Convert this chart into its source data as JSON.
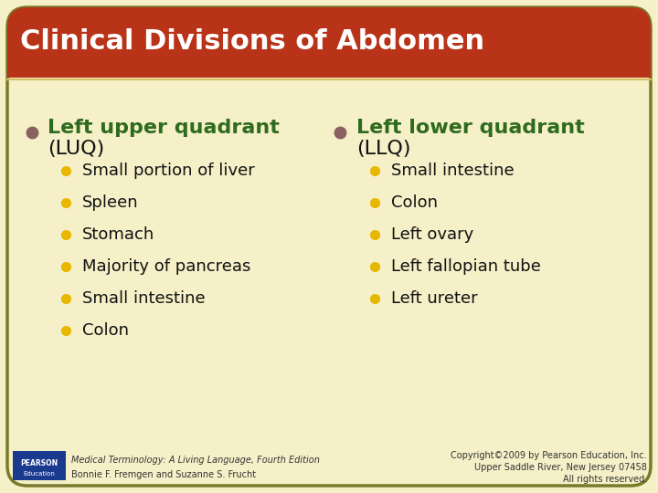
{
  "title": "Clinical Divisions of Abdomen",
  "title_bg": "#b83318",
  "title_text_color": "#ffffff",
  "slide_bg": "#f5f0c8",
  "border_color": "#7a7a2a",
  "left_header_line1": "Left upper quadrant",
  "left_header_line2": "(LUQ)",
  "left_header_color": "#2e6b1e",
  "left_bullet_color": "#e8b800",
  "left_items": [
    "Small portion of liver",
    "Spleen",
    "Stomach",
    "Majority of pancreas",
    "Small intestine",
    "Colon"
  ],
  "right_header_line1": "Left lower quadrant",
  "right_header_line2": "(LLQ)",
  "right_header_color": "#2e6b1e",
  "right_bullet_color": "#e8b800",
  "right_items": [
    "Small intestine",
    "Colon",
    "Left ovary",
    "Left fallopian tube",
    "Left ureter"
  ],
  "main_bullet_color": "#8b6060",
  "footer_left_italic": "Medical Terminology: A Living Language, Fourth Edition",
  "footer_left_normal": "Bonnie F. Fremgen and Suzanne S. Frucht",
  "footer_right": "Copyright©2009 by Pearson Education, Inc.\nUpper Saddle River, New Jersey 07458\nAll rights reserved.",
  "pearson_box_color": "#1a3a8f",
  "title_fontsize": 22,
  "header_fontsize": 16,
  "item_fontsize": 13,
  "footer_fontsize": 7
}
